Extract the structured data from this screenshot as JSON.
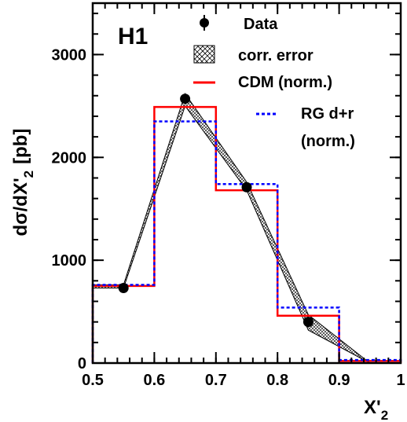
{
  "chart_data": {
    "type": "line",
    "label": "H1",
    "xlabel_main": "X'",
    "xlabel_sub": "2",
    "ylabel_main": "dσ/dX'",
    "ylabel_sub": "2",
    "ylabel_unit": "[pb]",
    "xlim": [
      0.5,
      1.0
    ],
    "ylim": [
      0,
      3500
    ],
    "xticks": [
      "0.5",
      "0.6",
      "0.7",
      "0.8",
      "0.9",
      "1"
    ],
    "xtick_values": [
      0.5,
      0.6,
      0.7,
      0.8,
      0.9,
      1.0
    ],
    "yticks": [
      "0",
      "1000",
      "2000",
      "3000"
    ],
    "ytick_values": [
      0,
      1000,
      2000,
      3000
    ],
    "legend": {
      "data": "Data",
      "corr_error": "corr. error",
      "cdm": "CDM (norm.)",
      "rg_line1": "RG d+r",
      "rg_line2": "(norm.)"
    },
    "series": [
      {
        "name": "Data",
        "kind": "points",
        "x": [
          0.55,
          0.65,
          0.75,
          0.85
        ],
        "y": [
          730,
          2570,
          1710,
          400
        ]
      },
      {
        "name": "corr. error",
        "kind": "band",
        "x": [
          0.5,
          0.55,
          0.65,
          0.75,
          0.85,
          0.95
        ],
        "y_low": [
          730,
          730,
          2500,
          1680,
          320,
          0
        ],
        "y_high": [
          760,
          760,
          2620,
          1760,
          470,
          0
        ]
      },
      {
        "name": "CDM (norm.)",
        "kind": "step",
        "color": "#ff0000",
        "edges": [
          0.5,
          0.6,
          0.7,
          0.8,
          0.9,
          1.0
        ],
        "values": [
          750,
          2490,
          1680,
          460,
          20
        ]
      },
      {
        "name": "RG d+r (norm.)",
        "kind": "step",
        "color": "#0000ff",
        "edges": [
          0.5,
          0.6,
          0.7,
          0.8,
          0.9,
          1.0
        ],
        "values": [
          760,
          2350,
          1740,
          540,
          30
        ]
      }
    ]
  }
}
